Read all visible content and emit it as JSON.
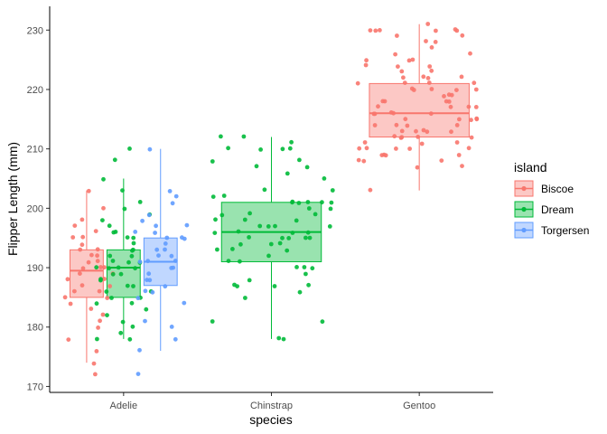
{
  "chart_data": {
    "type": "boxplot",
    "xlabel": "species",
    "ylabel": "Flipper Length (mm)",
    "categories": [
      "Adelie",
      "Chinstrap",
      "Gentoo"
    ],
    "ylim": [
      169,
      234
    ],
    "y_ticks": [
      170,
      180,
      190,
      200,
      210,
      220,
      230
    ],
    "grid": false,
    "legend": {
      "title": "island",
      "position": "right",
      "entries": [
        "Biscoe",
        "Dream",
        "Torgersen"
      ]
    },
    "colors": {
      "Biscoe": "#F8766D",
      "Dream": "#00BA38",
      "Torgersen": "#619CFF"
    },
    "boxes": [
      {
        "species": "Adelie",
        "island": "Biscoe",
        "whisker_low": 174,
        "q1": 185,
        "median": 189.5,
        "q3": 193,
        "whisker_high": 203
      },
      {
        "species": "Adelie",
        "island": "Dream",
        "whisker_low": 178,
        "q1": 185,
        "median": 190,
        "q3": 193,
        "whisker_high": 205
      },
      {
        "species": "Adelie",
        "island": "Torgersen",
        "whisker_low": 176,
        "q1": 187,
        "median": 191,
        "q3": 195,
        "whisker_high": 210
      },
      {
        "species": "Chinstrap",
        "island": "Dream",
        "whisker_low": 178,
        "q1": 191,
        "median": 196,
        "q3": 201,
        "whisker_high": 212
      },
      {
        "species": "Gentoo",
        "island": "Biscoe",
        "whisker_low": 203,
        "q1": 212,
        "median": 216,
        "q3": 221,
        "whisker_high": 231
      }
    ],
    "points": [
      {
        "species": "Adelie",
        "island": "Biscoe",
        "y": [
          172,
          174,
          176,
          178,
          180,
          181,
          182,
          183,
          184,
          185,
          185,
          186,
          186,
          187,
          187,
          188,
          188,
          189,
          189,
          190,
          190,
          190,
          191,
          191,
          192,
          192,
          193,
          193,
          194,
          195,
          195,
          196,
          197,
          198,
          200,
          203
        ]
      },
      {
        "species": "Adelie",
        "island": "Dream",
        "y": [
          178,
          178,
          179,
          180,
          181,
          182,
          183,
          184,
          184,
          185,
          185,
          186,
          186,
          187,
          187,
          188,
          188,
          189,
          189,
          190,
          190,
          190,
          190,
          191,
          191,
          191,
          192,
          192,
          193,
          193,
          194,
          195,
          195,
          196,
          196,
          197,
          198,
          199,
          200,
          201,
          203,
          205,
          208,
          210
        ]
      },
      {
        "species": "Adelie",
        "island": "Torgersen",
        "y": [
          172,
          176,
          178,
          180,
          181,
          184,
          185,
          186,
          186,
          187,
          188,
          188,
          189,
          190,
          190,
          191,
          191,
          191,
          192,
          192,
          193,
          193,
          194,
          195,
          195,
          195,
          196,
          196,
          197,
          197,
          198,
          199,
          201,
          202,
          203,
          210
        ]
      },
      {
        "species": "Chinstrap",
        "island": "Dream",
        "y": [
          178,
          178,
          181,
          181,
          185,
          186,
          187,
          187,
          187,
          187,
          188,
          189,
          190,
          190,
          190,
          191,
          191,
          192,
          193,
          193,
          193,
          194,
          194,
          194,
          195,
          195,
          195,
          195,
          195,
          196,
          196,
          196,
          196,
          197,
          197,
          197,
          197,
          198,
          198,
          198,
          199,
          199,
          199,
          200,
          200,
          201,
          201,
          201,
          201,
          201,
          201,
          202,
          202,
          203,
          203,
          205,
          206,
          207,
          207,
          208,
          208,
          210,
          210,
          210,
          210,
          211,
          212,
          212
        ]
      },
      {
        "species": "Gentoo",
        "island": "Biscoe",
        "y": [
          203,
          207,
          207,
          208,
          208,
          208,
          209,
          209,
          209,
          209,
          210,
          210,
          210,
          210,
          210,
          211,
          211,
          211,
          212,
          212,
          212,
          212,
          212,
          213,
          213,
          213,
          213,
          213,
          214,
          214,
          214,
          214,
          215,
          215,
          215,
          215,
          215,
          216,
          216,
          216,
          216,
          216,
          217,
          217,
          217,
          217,
          218,
          218,
          218,
          218,
          219,
          219,
          219,
          220,
          220,
          220,
          220,
          220,
          221,
          221,
          221,
          221,
          222,
          222,
          222,
          222,
          223,
          223,
          224,
          224,
          224,
          225,
          225,
          225,
          226,
          226,
          227,
          228,
          228,
          229,
          229,
          230,
          230,
          230,
          230,
          230,
          230,
          231
        ]
      }
    ]
  }
}
